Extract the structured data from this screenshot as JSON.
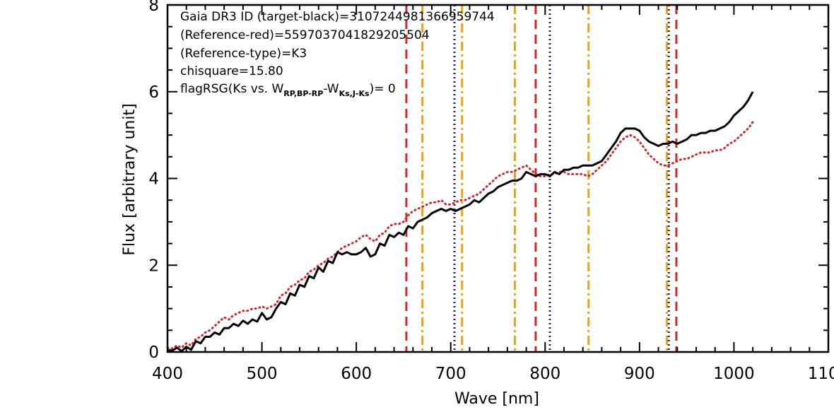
{
  "chart_data": {
    "type": "line",
    "xlabel": "Wave [nm]",
    "ylabel": "Flux [arbitrary unit]",
    "xlim": [
      400,
      1100
    ],
    "ylim": [
      0,
      8
    ],
    "x_ticks": [
      400,
      500,
      600,
      700,
      800,
      900,
      1000,
      1100
    ],
    "x_tick_labels": [
      "400",
      "500",
      "600",
      "700",
      "800",
      "900",
      "1000",
      "1100"
    ],
    "y_ticks": [
      0,
      2,
      4,
      6,
      8
    ],
    "y_tick_labels": [
      "0",
      "2",
      "4",
      "6",
      "8"
    ],
    "grid": false,
    "annotations": {
      "line1": "Gaia DR3 ID (target-black)=3107244981366959744",
      "line2": "(Reference-red)=5597037041829205504",
      "line3": "(Reference-type)=K3",
      "line4": "chisquare=15.80",
      "line5_prefix": "flagRSG(Ks vs. W",
      "line5_sub1": "RP,BP-RP",
      "line5_mid": "-W",
      "line5_sub2": "Ks,J-Ks",
      "line5_suffix": ")= 0"
    },
    "series": [
      {
        "color": "#000000",
        "style": "solid",
        "x": [
          400,
          405,
          410,
          415,
          420,
          425,
          430,
          435,
          440,
          445,
          450,
          455,
          460,
          465,
          470,
          475,
          480,
          485,
          490,
          495,
          500,
          505,
          510,
          515,
          520,
          525,
          530,
          535,
          540,
          545,
          550,
          555,
          560,
          565,
          570,
          575,
          580,
          585,
          590,
          595,
          600,
          605,
          610,
          615,
          620,
          625,
          630,
          635,
          640,
          645,
          650,
          655,
          660,
          665,
          670,
          675,
          680,
          685,
          690,
          695,
          700,
          705,
          710,
          715,
          720,
          725,
          730,
          735,
          740,
          745,
          750,
          755,
          760,
          765,
          770,
          775,
          780,
          785,
          790,
          795,
          800,
          805,
          810,
          815,
          820,
          825,
          830,
          835,
          840,
          845,
          850,
          855,
          860,
          865,
          870,
          875,
          880,
          885,
          890,
          895,
          900,
          905,
          910,
          915,
          920,
          925,
          930,
          935,
          940,
          945,
          950,
          955,
          960,
          965,
          970,
          975,
          980,
          985,
          990,
          995,
          1000,
          1005,
          1010,
          1015,
          1020
        ],
        "y": [
          0.05,
          0.03,
          0.1,
          0.02,
          0.12,
          0.05,
          0.25,
          0.2,
          0.35,
          0.35,
          0.45,
          0.4,
          0.55,
          0.55,
          0.65,
          0.6,
          0.72,
          0.65,
          0.75,
          0.7,
          0.9,
          0.75,
          0.8,
          1.0,
          1.15,
          1.1,
          1.35,
          1.3,
          1.55,
          1.5,
          1.75,
          1.7,
          1.95,
          1.85,
          2.1,
          2.05,
          2.3,
          2.25,
          2.3,
          2.25,
          2.25,
          2.3,
          2.4,
          2.2,
          2.25,
          2.5,
          2.45,
          2.7,
          2.65,
          2.75,
          2.7,
          2.9,
          2.85,
          3.0,
          3.05,
          3.1,
          3.2,
          3.25,
          3.3,
          3.25,
          3.3,
          3.25,
          3.3,
          3.35,
          3.4,
          3.5,
          3.45,
          3.55,
          3.65,
          3.7,
          3.8,
          3.85,
          3.9,
          3.95,
          3.95,
          4.0,
          4.15,
          4.1,
          4.05,
          4.1,
          4.1,
          4.05,
          4.15,
          4.1,
          4.2,
          4.2,
          4.25,
          4.25,
          4.3,
          4.3,
          4.3,
          4.35,
          4.4,
          4.55,
          4.7,
          4.85,
          5.05,
          5.15,
          5.15,
          5.15,
          5.1,
          4.95,
          4.85,
          4.8,
          4.75,
          4.8,
          4.8,
          4.85,
          4.8,
          4.85,
          4.9,
          5.0,
          5.0,
          5.05,
          5.05,
          5.1,
          5.1,
          5.15,
          5.2,
          5.3,
          5.45,
          5.55,
          5.65,
          5.8,
          6.0
        ]
      },
      {
        "color": "#d62728",
        "style": "dotted",
        "x": [
          400,
          405,
          410,
          415,
          420,
          425,
          430,
          435,
          440,
          445,
          450,
          455,
          460,
          465,
          470,
          475,
          480,
          485,
          490,
          495,
          500,
          505,
          510,
          515,
          520,
          525,
          530,
          535,
          540,
          545,
          550,
          555,
          560,
          565,
          570,
          575,
          580,
          585,
          590,
          595,
          600,
          605,
          610,
          615,
          620,
          625,
          630,
          635,
          640,
          645,
          650,
          655,
          660,
          665,
          670,
          675,
          680,
          685,
          690,
          695,
          700,
          705,
          710,
          715,
          720,
          725,
          730,
          735,
          740,
          745,
          750,
          755,
          760,
          765,
          770,
          775,
          780,
          785,
          790,
          795,
          800,
          805,
          810,
          815,
          820,
          825,
          830,
          835,
          840,
          845,
          850,
          855,
          860,
          865,
          870,
          875,
          880,
          885,
          890,
          895,
          900,
          905,
          910,
          915,
          920,
          925,
          930,
          935,
          940,
          945,
          950,
          955,
          960,
          965,
          970,
          975,
          980,
          985,
          990,
          995,
          1000,
          1005,
          1010,
          1015,
          1020
        ],
        "y": [
          0.1,
          0.08,
          0.15,
          0.1,
          0.2,
          0.15,
          0.3,
          0.35,
          0.45,
          0.5,
          0.6,
          0.7,
          0.8,
          0.75,
          0.85,
          0.9,
          0.95,
          0.95,
          1.0,
          1.0,
          1.05,
          1.0,
          1.05,
          1.1,
          1.3,
          1.35,
          1.5,
          1.55,
          1.65,
          1.7,
          1.85,
          1.9,
          2.0,
          2.05,
          2.15,
          2.2,
          2.3,
          2.4,
          2.45,
          2.5,
          2.55,
          2.65,
          2.7,
          2.6,
          2.55,
          2.7,
          2.75,
          2.9,
          2.95,
          2.95,
          3.0,
          3.15,
          3.25,
          3.3,
          3.35,
          3.4,
          3.45,
          3.45,
          3.5,
          3.4,
          3.4,
          3.45,
          3.5,
          3.5,
          3.55,
          3.6,
          3.65,
          3.75,
          3.85,
          3.95,
          4.05,
          4.1,
          4.15,
          4.15,
          4.2,
          4.25,
          4.3,
          4.2,
          4.1,
          4.05,
          4.05,
          4.1,
          4.1,
          4.15,
          4.15,
          4.1,
          4.1,
          4.1,
          4.1,
          4.05,
          4.1,
          4.2,
          4.3,
          4.4,
          4.55,
          4.7,
          4.85,
          4.95,
          5.0,
          4.95,
          4.85,
          4.7,
          4.55,
          4.45,
          4.35,
          4.3,
          4.3,
          4.35,
          4.4,
          4.45,
          4.45,
          4.5,
          4.55,
          4.6,
          4.6,
          4.6,
          4.65,
          4.65,
          4.7,
          4.8,
          4.85,
          4.95,
          5.05,
          5.15,
          5.3
        ]
      }
    ],
    "vertical_lines": [
      {
        "x": 653,
        "color": "#d62728",
        "style": "dashed"
      },
      {
        "x": 670,
        "color": "#e8a317",
        "style": "dashdot"
      },
      {
        "x": 704,
        "color": "#1f1f8a",
        "style": "dotted"
      },
      {
        "x": 712,
        "color": "#e8a317",
        "style": "dashdot"
      },
      {
        "x": 768,
        "color": "#e8a317",
        "style": "dashdot"
      },
      {
        "x": 790,
        "color": "#d62728",
        "style": "dashed"
      },
      {
        "x": 805,
        "color": "#1f1f8a",
        "style": "dotted"
      },
      {
        "x": 846,
        "color": "#e8a317",
        "style": "dashdot"
      },
      {
        "x": 929,
        "color": "#e8a317",
        "style": "dashdot"
      },
      {
        "x": 931,
        "color": "#1f1f8a",
        "style": "dotted"
      },
      {
        "x": 939,
        "color": "#d62728",
        "style": "dashed"
      }
    ]
  }
}
